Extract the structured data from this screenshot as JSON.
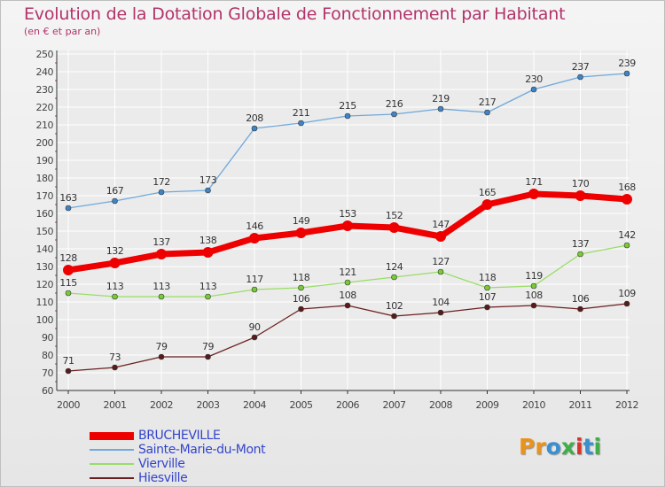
{
  "title": "Evolution de la Dotation Globale de Fonctionnement par Habitant",
  "subtitle": "(en € et par an)",
  "logo": {
    "text": "Proxiti",
    "colors": [
      "#e8931e",
      "#e8931e",
      "#3a8fd0",
      "#3fae49",
      "#d9322a",
      "#3a8fd0",
      "#3fae49"
    ]
  },
  "chart_data": {
    "type": "line",
    "title": "Evolution de la Dotation Globale de Fonctionnement par Habitant",
    "subtitle": "(en € et par an)",
    "x": [
      2000,
      2001,
      2002,
      2003,
      2004,
      2005,
      2006,
      2007,
      2008,
      2009,
      2010,
      2011,
      2012
    ],
    "x_tick_labels": [
      "2000",
      "2001",
      "2002",
      "2003",
      "2004",
      "2005",
      "2006",
      "2007",
      "2008",
      "2009",
      "2010",
      "2011",
      "2012"
    ],
    "ylim": [
      60,
      250
    ],
    "y_ticks": [
      60,
      70,
      80,
      90,
      100,
      110,
      120,
      130,
      140,
      150,
      160,
      170,
      180,
      190,
      200,
      210,
      220,
      230,
      240,
      250
    ],
    "y_tick_labels": [
      "60",
      "70",
      "80",
      "90",
      "100",
      "110",
      "120",
      "130",
      "140",
      "150",
      "160",
      "170",
      "180",
      "190",
      "200",
      "210",
      "220",
      "230",
      "240",
      "250"
    ],
    "grid": true,
    "legend_position": "bottom-left",
    "series": [
      {
        "name": "BRUCHEVILLE",
        "color": "#ee0000",
        "marker_color": "#ee0000",
        "label_color": "#333333",
        "legend_color": "#3344cc",
        "values": [
          128,
          132,
          137,
          138,
          146,
          149,
          153,
          152,
          147,
          165,
          171,
          170,
          168
        ],
        "labels": [
          "128",
          "132",
          "137",
          "138",
          "146",
          "149",
          "153",
          "152",
          "147",
          "165",
          "171",
          "170",
          "168"
        ]
      },
      {
        "name": "Sainte-Marie-du-Mont",
        "color": "#6fa8dc",
        "marker_color": "#3d85c6",
        "label_color": "#333333",
        "legend_color": "#3344cc",
        "values": [
          163,
          167,
          172,
          173,
          208,
          211,
          215,
          216,
          219,
          217,
          230,
          237,
          239
        ],
        "labels": [
          "163",
          "167",
          "172",
          "173",
          "208",
          "211",
          "215",
          "216",
          "219",
          "217",
          "230",
          "237",
          "239"
        ]
      },
      {
        "name": "Vierville",
        "color": "#99dd66",
        "marker_color": "#77cc33",
        "label_color": "#333333",
        "legend_color": "#3344cc",
        "values": [
          115,
          113,
          113,
          113,
          117,
          118,
          121,
          124,
          127,
          118,
          119,
          137,
          142
        ],
        "labels": [
          "115",
          "113",
          "113",
          "113",
          "117",
          "118",
          "121",
          "124",
          "127",
          "118",
          "119",
          "137",
          "142"
        ]
      },
      {
        "name": "Hiesville",
        "color": "#6b2020",
        "marker_color": "#5a1a1a",
        "label_color": "#333333",
        "legend_color": "#3344cc",
        "values": [
          71,
          73,
          79,
          79,
          90,
          106,
          108,
          102,
          104,
          107,
          108,
          106,
          109
        ],
        "labels": [
          "71",
          "73",
          "79",
          "79",
          "90",
          "106",
          "108",
          "102",
          "104",
          "107",
          "108",
          "106",
          "109"
        ]
      }
    ]
  }
}
